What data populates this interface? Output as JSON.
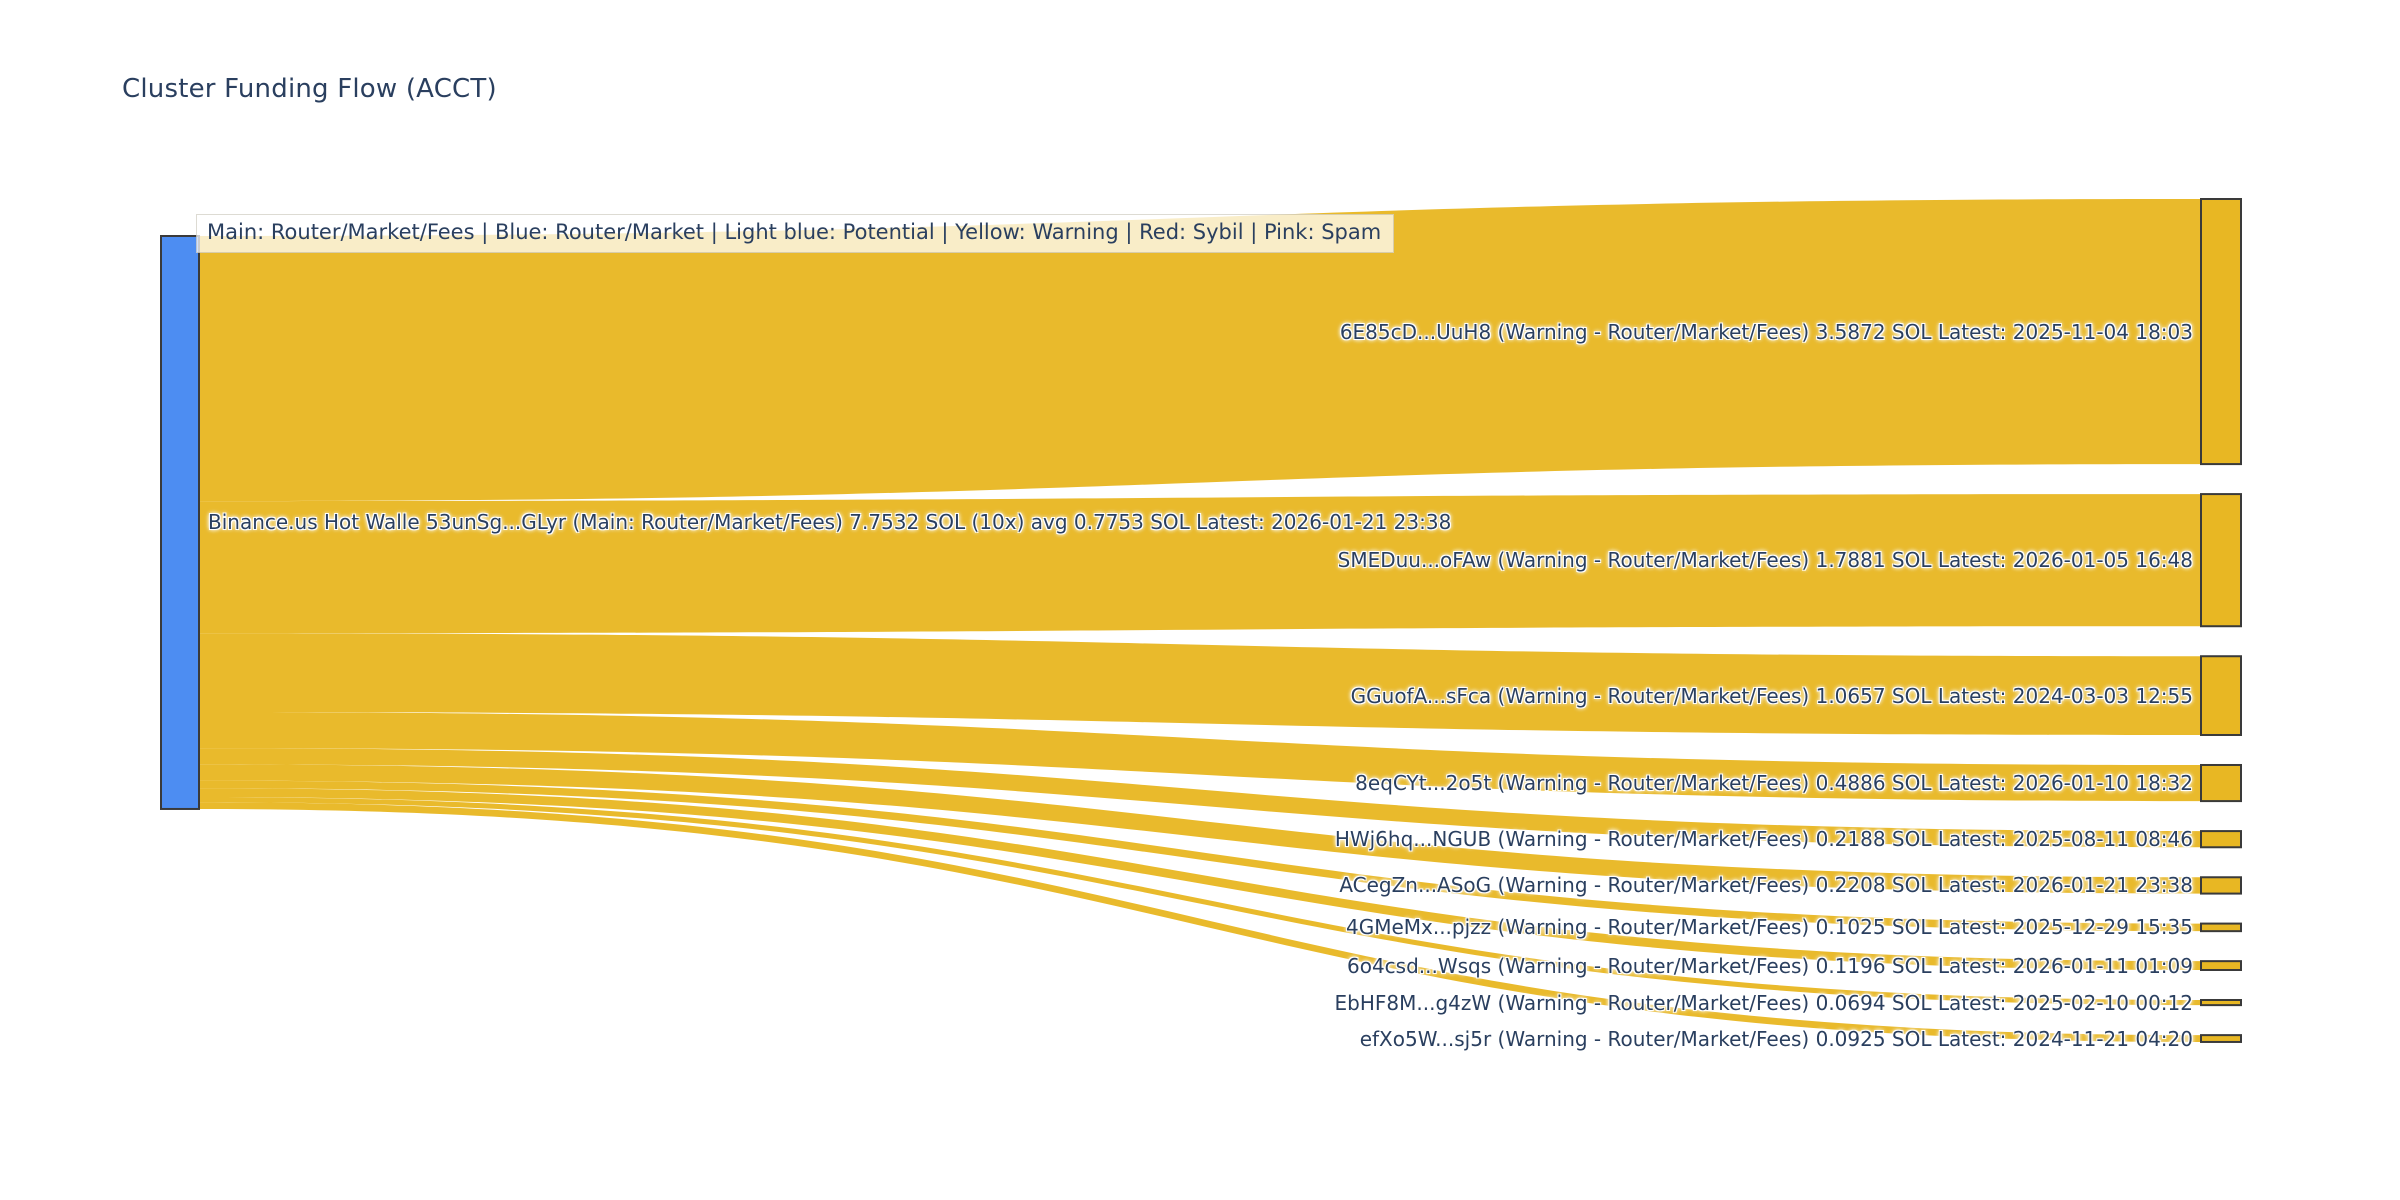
{
  "title": "Cluster Funding Flow (ACCT)",
  "legend": "Main: Router/Market/Fees  |  Blue: Router/Market | Light blue: Potential | Yellow: Warning | Red: Sybil | Pink: Spam",
  "colors": {
    "source_node": "#4d8df2",
    "flow": "#e8b723",
    "target_node": "#e8b723",
    "node_border": "#3a3a3a",
    "label_text": "#2a3f5f",
    "legend_bg": "rgba(255,255,255,0.74)"
  },
  "chart_data": {
    "type": "sankey",
    "units": "SOL",
    "source": {
      "label": "Binance.us Hot Walle 53unSg...GLyr (Main: Router/Market/Fees) 7.7532 SOL (10x) avg 0.7753 SOL Latest: 2026-01-21 23:38",
      "name": "Binance.us Hot Walle 53unSg...GLyr",
      "category": "Main: Router/Market/Fees",
      "total_sol": 7.7532,
      "tx_count": 10,
      "avg_sol": 0.7753,
      "latest": "2026-01-21 23:38"
    },
    "links": [
      {
        "label": "6E85cD...UuH8 (Warning - Router/Market/Fees) 3.5872 SOL Latest: 2025-11-04 18:03",
        "target": "6E85cD...UuH8",
        "category": "Warning - Router/Market/Fees",
        "value_sol": 3.5872,
        "latest": "2025-11-04 18:03"
      },
      {
        "label": "SMEDuu...oFAw (Warning - Router/Market/Fees) 1.7881 SOL Latest: 2026-01-05 16:48",
        "target": "SMEDuu...oFAw",
        "category": "Warning - Router/Market/Fees",
        "value_sol": 1.7881,
        "latest": "2026-01-05 16:48"
      },
      {
        "label": "GGuofA...sFca (Warning - Router/Market/Fees) 1.0657 SOL Latest: 2024-03-03 12:55",
        "target": "GGuofA...sFca",
        "category": "Warning - Router/Market/Fees",
        "value_sol": 1.0657,
        "latest": "2024-03-03 12:55"
      },
      {
        "label": "8eqCYt...2o5t (Warning - Router/Market/Fees) 0.4886 SOL Latest: 2026-01-10 18:32",
        "target": "8eqCYt...2o5t",
        "category": "Warning - Router/Market/Fees",
        "value_sol": 0.4886,
        "latest": "2026-01-10 18:32"
      },
      {
        "label": "HWj6hq...NGUB (Warning - Router/Market/Fees) 0.2188 SOL Latest: 2025-08-11 08:46",
        "target": "HWj6hq...NGUB",
        "category": "Warning - Router/Market/Fees",
        "value_sol": 0.2188,
        "latest": "2025-08-11 08:46"
      },
      {
        "label": "ACegZn...ASoG (Warning - Router/Market/Fees) 0.2208 SOL Latest: 2026-01-21 23:38",
        "target": "ACegZn...ASoG",
        "category": "Warning - Router/Market/Fees",
        "value_sol": 0.2208,
        "latest": "2026-01-21 23:38"
      },
      {
        "label": "4GMeMx...pjzz (Warning - Router/Market/Fees) 0.1025 SOL Latest: 2025-12-29 15:35",
        "target": "4GMeMx...pjzz",
        "category": "Warning - Router/Market/Fees",
        "value_sol": 0.1025,
        "latest": "2025-12-29 15:35"
      },
      {
        "label": "6o4csd...Wsqs (Warning - Router/Market/Fees) 0.1196 SOL Latest: 2026-01-11 01:09",
        "target": "6o4csd...Wsqs",
        "category": "Warning - Router/Market/Fees",
        "value_sol": 0.1196,
        "latest": "2026-01-11 01:09"
      },
      {
        "label": "EbHF8M...g4zW (Warning - Router/Market/Fees) 0.0694 SOL Latest: 2025-02-10 00:12",
        "target": "EbHF8M...g4zW",
        "category": "Warning - Router/Market/Fees",
        "value_sol": 0.0694,
        "latest": "2025-02-10 00:12"
      },
      {
        "label": "efXo5W...sj5r (Warning - Router/Market/Fees) 0.0925 SOL Latest: 2024-11-21 04:20",
        "target": "efXo5W...sj5r",
        "category": "Warning - Router/Market/Fees",
        "value_sol": 0.0925,
        "latest": "2024-11-21 04:20"
      }
    ]
  }
}
